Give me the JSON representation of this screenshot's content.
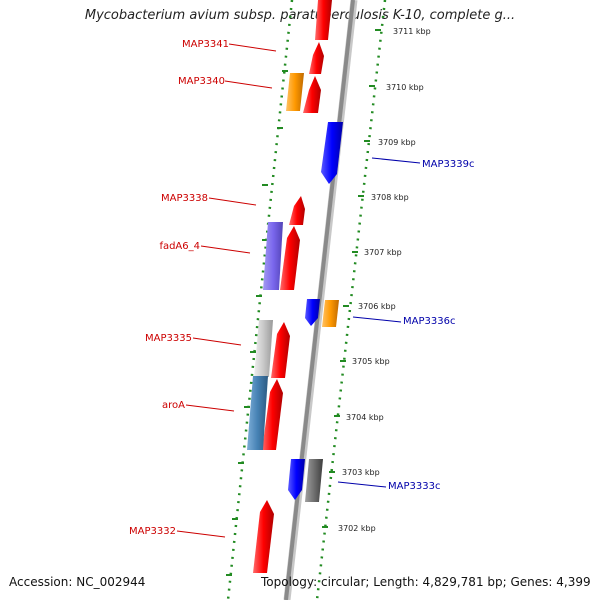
{
  "title": "Mycobacterium avium subsp. paratuberculosis K-10, complete g...",
  "footer": {
    "accession": "Accession: NC_002944",
    "summary": "Topology: circular; Length: 4,829,781 bp; Genes: 4,399"
  },
  "colors": {
    "forward_gene": "#ff0000",
    "reverse_gene": "#0000ff",
    "backbone": "#888888",
    "dotted_ring": "#228b22",
    "label_forward": "#cc0000",
    "label_reverse": "#0000aa"
  },
  "scale": {
    "unit": "kbp",
    "ticks": [
      {
        "label": "3711 kbp",
        "kbp": 3711
      },
      {
        "label": "3710 kbp",
        "kbp": 3710
      },
      {
        "label": "3709 kbp",
        "kbp": 3709
      },
      {
        "label": "3708 kbp",
        "kbp": 3708
      },
      {
        "label": "3707 kbp",
        "kbp": 3707
      },
      {
        "label": "3706 kbp",
        "kbp": 3706
      },
      {
        "label": "3705 kbp",
        "kbp": 3705
      },
      {
        "label": "3704 kbp",
        "kbp": 3704
      },
      {
        "label": "3703 kbp",
        "kbp": 3703
      },
      {
        "label": "3702 kbp",
        "kbp": 3702
      }
    ]
  },
  "gene_labels": [
    {
      "text": "MAP3341",
      "strand": "forward"
    },
    {
      "text": "MAP3340",
      "strand": "forward"
    },
    {
      "text": "MAP3339c",
      "strand": "reverse"
    },
    {
      "text": "MAP3338",
      "strand": "forward"
    },
    {
      "text": "fadA6_4",
      "strand": "forward"
    },
    {
      "text": "MAP3336c",
      "strand": "reverse"
    },
    {
      "text": "MAP3335",
      "strand": "forward"
    },
    {
      "text": "aroA",
      "strand": "forward"
    },
    {
      "text": "MAP3333c",
      "strand": "reverse"
    },
    {
      "text": "MAP3332",
      "strand": "forward"
    }
  ]
}
